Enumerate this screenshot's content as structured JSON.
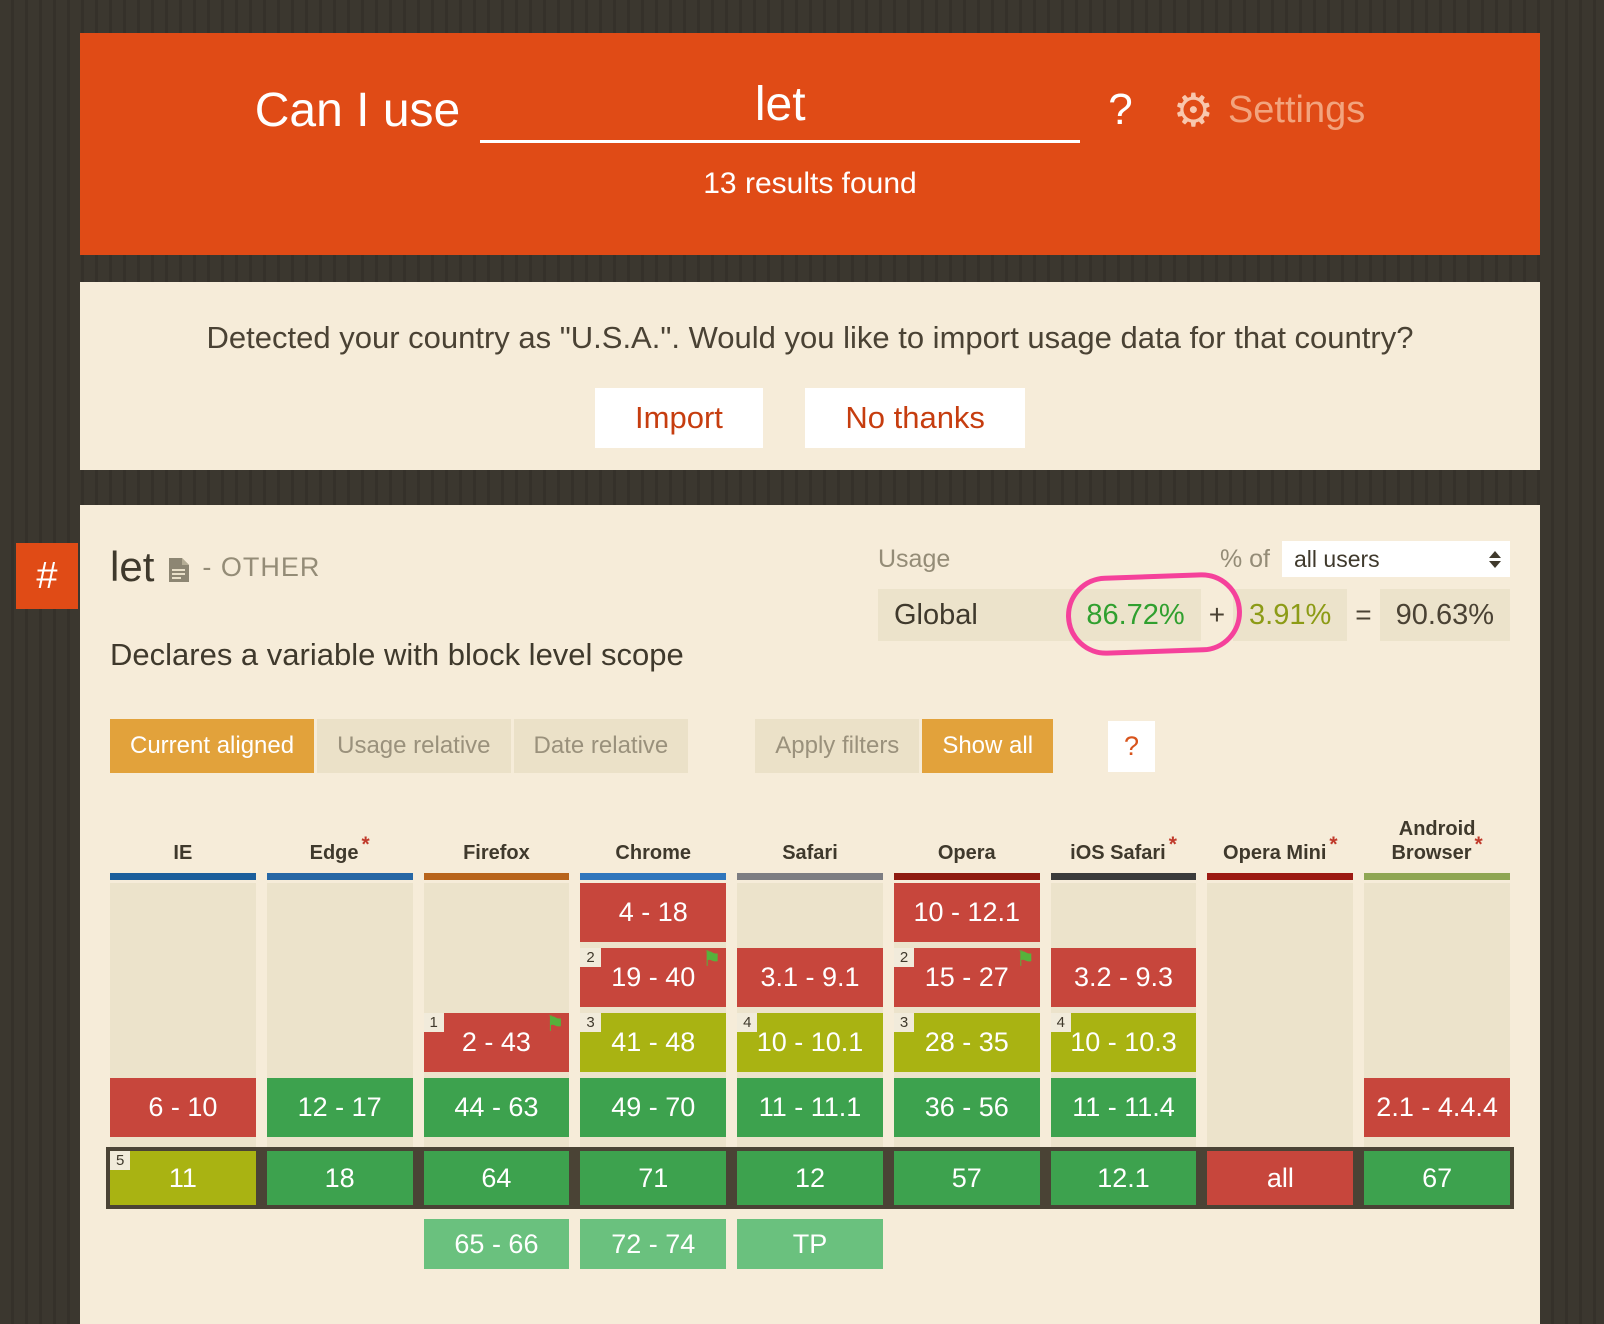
{
  "colors": {
    "accent": "#e04b16",
    "panel_bg": "#f6ecd9",
    "column_bg": "#ece3cb",
    "support_yes": "#3da24e",
    "support_no": "#c7463c",
    "support_partial": "#a9b312",
    "support_future": "#6ac17e",
    "current_row_border": "#4a4335",
    "highlight_pink": "#f5419b",
    "tab_active_bg": "#e2a23b"
  },
  "header": {
    "title": "Can I use",
    "search_value": "let",
    "help_label": "?",
    "settings_label": "Settings",
    "results_text": "13 results found"
  },
  "import_banner": {
    "message": "Detected your country as \"U.S.A.\". Would you like to import usage data for that country?",
    "import_label": "Import",
    "dismiss_label": "No thanks"
  },
  "feature": {
    "anchor_label": "#",
    "title": "let",
    "category": "- OTHER",
    "description": "Declares a variable with block level scope",
    "usage": {
      "label": "Usage",
      "percent_of_label": "% of",
      "audience_value": "all users",
      "scope_label": "Global",
      "supported_pct": "86.72%",
      "plus": "+",
      "partial_pct": "3.91%",
      "equals": "=",
      "total_pct": "90.63%"
    },
    "view_tabs": [
      {
        "label": "Current aligned",
        "active": true
      },
      {
        "label": "Usage relative",
        "active": false
      },
      {
        "label": "Date relative",
        "active": false
      }
    ],
    "filter_buttons": [
      {
        "label": "Apply filters",
        "active": false
      },
      {
        "label": "Show all",
        "active": true
      }
    ],
    "help_button": "?"
  },
  "support_table": {
    "browsers": [
      {
        "name": "IE",
        "star": false,
        "bar": "#1b5e9b",
        "past": [
          null,
          null,
          null,
          {
            "label": "6 - 10",
            "type": "no"
          }
        ],
        "current": {
          "label": "11",
          "type": "partial",
          "sup": "5"
        },
        "future": null
      },
      {
        "name": "Edge",
        "star": true,
        "bar": "#2767a5",
        "past": [
          null,
          null,
          null,
          {
            "label": "12 - 17",
            "type": "yes"
          }
        ],
        "current": {
          "label": "18",
          "type": "yes"
        },
        "future": null
      },
      {
        "name": "Firefox",
        "star": false,
        "bar": "#b8641b",
        "past": [
          null,
          null,
          {
            "label": "2 - 43",
            "type": "no",
            "sup": "1",
            "flag": true
          },
          {
            "label": "44 - 63",
            "type": "yes"
          }
        ],
        "current": {
          "label": "64",
          "type": "yes"
        },
        "future": {
          "label": "65 - 66",
          "type": "future"
        }
      },
      {
        "name": "Chrome",
        "star": false,
        "bar": "#3076bc",
        "past": [
          {
            "label": "4 - 18",
            "type": "no"
          },
          {
            "label": "19 - 40",
            "type": "no",
            "sup": "2",
            "flag": true
          },
          {
            "label": "41 - 48",
            "type": "partial",
            "sup": "3"
          },
          {
            "label": "49 - 70",
            "type": "yes"
          }
        ],
        "current": {
          "label": "71",
          "type": "yes"
        },
        "future": {
          "label": "72 - 74",
          "type": "future"
        }
      },
      {
        "name": "Safari",
        "star": false,
        "bar": "#7d7d82",
        "past": [
          null,
          {
            "label": "3.1 - 9.1",
            "type": "no"
          },
          {
            "label": "10 - 10.1",
            "type": "partial",
            "sup": "4"
          },
          {
            "label": "11 - 11.1",
            "type": "yes"
          }
        ],
        "current": {
          "label": "12",
          "type": "yes"
        },
        "future": {
          "label": "TP",
          "type": "future"
        }
      },
      {
        "name": "Opera",
        "star": false,
        "bar": "#8f1b10",
        "past": [
          {
            "label": "10 - 12.1",
            "type": "no"
          },
          {
            "label": "15 - 27",
            "type": "no",
            "sup": "2",
            "flag": true
          },
          {
            "label": "28 - 35",
            "type": "partial",
            "sup": "3"
          },
          {
            "label": "36 - 56",
            "type": "yes"
          }
        ],
        "current": {
          "label": "57",
          "type": "yes"
        },
        "future": null
      },
      {
        "name": "iOS Safari",
        "star": true,
        "bar": "#3b3b3b",
        "past": [
          null,
          {
            "label": "3.2 - 9.3",
            "type": "no"
          },
          {
            "label": "10 - 10.3",
            "type": "partial",
            "sup": "4"
          },
          {
            "label": "11 - 11.4",
            "type": "yes"
          }
        ],
        "current": {
          "label": "12.1",
          "type": "yes"
        },
        "future": null
      },
      {
        "name": "Opera Mini",
        "star": true,
        "bar": "#9c1a12",
        "past": [
          null,
          null,
          null,
          null
        ],
        "current": {
          "label": "all",
          "type": "no"
        },
        "future": null
      },
      {
        "name": "Android Browser",
        "star": true,
        "bar": "#8fa653",
        "past": [
          null,
          null,
          null,
          {
            "label": "2.1 - 4.4.4",
            "type": "no"
          }
        ],
        "current": {
          "label": "67",
          "type": "yes"
        },
        "future": null
      }
    ]
  }
}
